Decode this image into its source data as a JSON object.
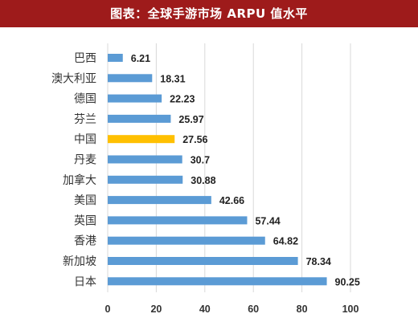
{
  "header": {
    "title": "图表：全球手游市场 ARPU 值水平"
  },
  "chart_data": {
    "type": "bar",
    "orientation": "horizontal",
    "title": "图表：全球手游市场 ARPU 值水平",
    "categories": [
      "巴西",
      "澳大利亚",
      "德国",
      "芬兰",
      "中国",
      "丹麦",
      "加拿大",
      "美国",
      "英国",
      "香港",
      "新加坡",
      "日本"
    ],
    "values": [
      6.21,
      18.31,
      22.23,
      25.97,
      27.56,
      30.7,
      30.88,
      42.66,
      57.44,
      64.82,
      78.34,
      90.25
    ],
    "value_labels": [
      "6.21",
      "18.31",
      "22.23",
      "25.97",
      "27.56",
      "30.7",
      "30.88",
      "42.66",
      "57.44",
      "64.82",
      "78.34",
      "90.25"
    ],
    "xlim": [
      0,
      100
    ],
    "xticks": [
      0,
      20,
      40,
      60,
      80,
      100
    ],
    "xtick_labels": [
      "0",
      "20",
      "40",
      "60",
      "80",
      "100"
    ],
    "grid": "vertical",
    "colors": {
      "default": "#5b9bd5",
      "highlight": "#ffc000",
      "highlight_category": "中国"
    }
  }
}
